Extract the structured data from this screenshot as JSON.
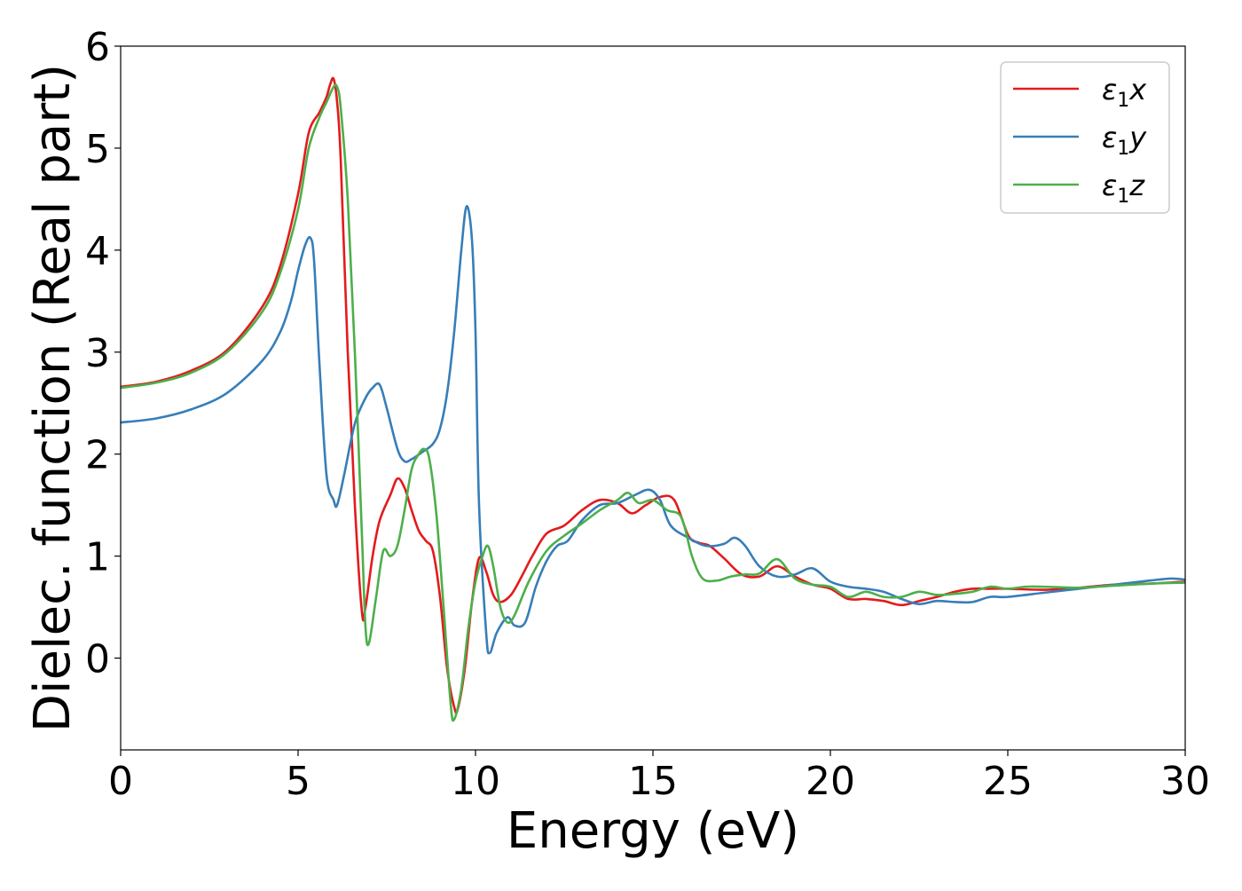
{
  "chart_data": {
    "type": "line",
    "title": "",
    "xlabel": "Energy (eV)",
    "ylabel": "Dielec. function (Real part)",
    "xlim": [
      0,
      30
    ],
    "ylim": [
      -0.9,
      6
    ],
    "xticks": [
      0,
      5,
      10,
      15,
      20,
      25,
      30
    ],
    "yticks": [
      0,
      1,
      2,
      3,
      4,
      5,
      6
    ],
    "grid": false,
    "legend_position": "top-right",
    "series": [
      {
        "name": "ε₁x",
        "legend_base": "ε",
        "legend_sub": "1",
        "legend_var": "x",
        "color": "#e41a1c",
        "x": [
          0,
          1,
          2,
          3,
          4,
          4.5,
          5,
          5.3,
          5.6,
          5.8,
          5.9,
          6.0,
          6.1,
          6.2,
          6.4,
          6.6,
          6.8,
          6.9,
          7.1,
          7.3,
          7.6,
          7.8,
          8.0,
          8.2,
          8.4,
          8.6,
          8.8,
          9.0,
          9.2,
          9.4,
          9.5,
          9.7,
          9.9,
          10.1,
          10.3,
          10.5,
          10.7,
          11.0,
          11.3,
          11.6,
          12.0,
          12.5,
          13.0,
          13.5,
          14.0,
          14.4,
          14.8,
          15.2,
          15.6,
          16.0,
          16.3,
          16.6,
          17.0,
          17.5,
          18.0,
          18.5,
          19.0,
          19.5,
          20.0,
          20.5,
          21.0,
          21.5,
          22.0,
          22.5,
          23.0,
          23.5,
          24.0,
          24.5,
          25.0,
          26.0,
          27.0,
          28.0,
          29.0,
          30.0
        ],
        "values": [
          2.66,
          2.71,
          2.82,
          3.02,
          3.45,
          3.85,
          4.55,
          5.15,
          5.35,
          5.5,
          5.62,
          5.68,
          5.45,
          4.9,
          3.0,
          1.5,
          0.45,
          0.5,
          1.0,
          1.35,
          1.6,
          1.76,
          1.67,
          1.45,
          1.25,
          1.15,
          1.05,
          0.6,
          -0.1,
          -0.48,
          -0.5,
          -0.1,
          0.55,
          0.98,
          0.85,
          0.62,
          0.55,
          0.62,
          0.8,
          1.0,
          1.22,
          1.3,
          1.45,
          1.55,
          1.52,
          1.42,
          1.5,
          1.58,
          1.55,
          1.2,
          1.13,
          1.1,
          0.98,
          0.82,
          0.8,
          0.9,
          0.8,
          0.72,
          0.68,
          0.58,
          0.58,
          0.56,
          0.52,
          0.56,
          0.6,
          0.65,
          0.68,
          0.68,
          0.68,
          0.67,
          0.69,
          0.72,
          0.73,
          0.75
        ]
      },
      {
        "name": "ε₁y",
        "legend_base": "ε",
        "legend_sub": "1",
        "legend_var": "y",
        "color": "#377eb8",
        "x": [
          0,
          1,
          2,
          3,
          4,
          4.5,
          4.8,
          5.0,
          5.2,
          5.35,
          5.45,
          5.6,
          5.8,
          6.0,
          6.1,
          6.3,
          6.6,
          6.9,
          7.1,
          7.3,
          7.5,
          7.8,
          8.0,
          8.2,
          8.5,
          8.8,
          9.0,
          9.2,
          9.4,
          9.6,
          9.75,
          9.9,
          10.0,
          10.1,
          10.3,
          10.4,
          10.6,
          10.9,
          11.1,
          11.4,
          11.7,
          12.0,
          12.3,
          12.6,
          13.0,
          13.5,
          14.0,
          14.5,
          14.9,
          15.2,
          15.5,
          16.0,
          16.5,
          17.0,
          17.3,
          17.6,
          18.0,
          18.5,
          19.0,
          19.5,
          20.0,
          20.5,
          21.0,
          21.5,
          22.0,
          22.5,
          23.0,
          23.5,
          24.0,
          24.5,
          25.0,
          26.0,
          27.0,
          28.0,
          29.0,
          29.6,
          30.0
        ],
        "values": [
          2.31,
          2.35,
          2.44,
          2.6,
          2.92,
          3.2,
          3.5,
          3.8,
          4.05,
          4.12,
          3.9,
          2.9,
          1.8,
          1.55,
          1.5,
          1.8,
          2.3,
          2.55,
          2.65,
          2.68,
          2.45,
          2.05,
          1.93,
          1.95,
          2.02,
          2.1,
          2.25,
          2.6,
          3.2,
          4.0,
          4.43,
          4.1,
          3.2,
          1.5,
          0.25,
          0.05,
          0.25,
          0.4,
          0.32,
          0.35,
          0.7,
          0.95,
          1.1,
          1.15,
          1.35,
          1.5,
          1.52,
          1.6,
          1.65,
          1.55,
          1.3,
          1.18,
          1.1,
          1.12,
          1.18,
          1.1,
          0.9,
          0.8,
          0.82,
          0.88,
          0.75,
          0.7,
          0.68,
          0.65,
          0.58,
          0.53,
          0.56,
          0.55,
          0.55,
          0.6,
          0.6,
          0.64,
          0.68,
          0.72,
          0.76,
          0.78,
          0.77
        ]
      },
      {
        "name": "ε₁z",
        "legend_base": "ε",
        "legend_sub": "1",
        "legend_var": "z",
        "color": "#4daf4a",
        "x": [
          0,
          1,
          2,
          3,
          4,
          4.5,
          5,
          5.3,
          5.6,
          5.8,
          6.0,
          6.1,
          6.2,
          6.4,
          6.6,
          6.8,
          6.9,
          7.0,
          7.2,
          7.4,
          7.6,
          7.8,
          8.0,
          8.2,
          8.4,
          8.55,
          8.7,
          8.9,
          9.1,
          9.3,
          9.4,
          9.6,
          9.8,
          10.0,
          10.2,
          10.35,
          10.5,
          10.7,
          10.9,
          11.1,
          11.5,
          12.0,
          12.5,
          13.0,
          13.5,
          14.0,
          14.3,
          14.6,
          15.0,
          15.4,
          15.8,
          16.1,
          16.4,
          16.8,
          17.2,
          17.6,
          18.0,
          18.5,
          19.0,
          19.5,
          20.0,
          20.5,
          21.0,
          21.5,
          22.0,
          22.5,
          23.0,
          23.5,
          24.0,
          24.5,
          25.0,
          25.5,
          26.0,
          27.0,
          28.0,
          29.0,
          30.0
        ],
        "values": [
          2.65,
          2.7,
          2.8,
          3.0,
          3.4,
          3.78,
          4.4,
          5.0,
          5.3,
          5.45,
          5.6,
          5.6,
          5.4,
          4.5,
          3.0,
          1.2,
          0.3,
          0.15,
          0.6,
          1.05,
          1.0,
          1.1,
          1.45,
          1.85,
          2.0,
          2.05,
          1.95,
          1.4,
          0.5,
          -0.45,
          -0.6,
          -0.3,
          0.3,
          0.75,
          1.0,
          1.1,
          0.9,
          0.5,
          0.35,
          0.42,
          0.75,
          1.05,
          1.2,
          1.32,
          1.45,
          1.55,
          1.62,
          1.52,
          1.55,
          1.45,
          1.38,
          1.0,
          0.78,
          0.76,
          0.8,
          0.82,
          0.83,
          0.97,
          0.78,
          0.72,
          0.7,
          0.6,
          0.65,
          0.6,
          0.6,
          0.65,
          0.62,
          0.63,
          0.65,
          0.7,
          0.68,
          0.7,
          0.7,
          0.69,
          0.71,
          0.73,
          0.74
        ]
      }
    ]
  }
}
